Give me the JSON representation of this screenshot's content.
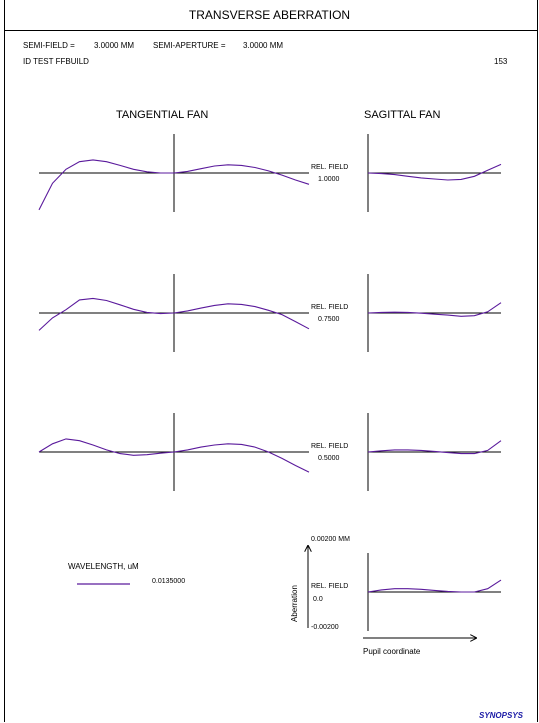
{
  "title": "TRANSVERSE ABERRATION",
  "header": {
    "semi_field_label": "SEMI-FIELD =",
    "semi_field_value": "3.0000 MM",
    "semi_aperture_label": "SEMI-APERTURE =",
    "semi_aperture_value": "3.0000 MM",
    "id_text": "ID TEST FFBUILD",
    "page_number": "153"
  },
  "fan_titles": {
    "tangential": "TANGENTIAL FAN",
    "sagittal": "SAGITTAL FAN"
  },
  "field_label": "REL. FIELD",
  "legend": {
    "title": "WAVELENGTH, uM",
    "entries": [
      {
        "value": "0.0135000",
        "color": "#5a1a9c"
      }
    ]
  },
  "scale": {
    "ylabel": "Aberration",
    "xlabel": "Pupil coordinate",
    "top": "0.00200 MM",
    "bottom": "-0.00200",
    "field_value": "0.0"
  },
  "brand": "SYNOPSYS",
  "chart_data": {
    "type": "line",
    "ylim": [
      -0.002,
      0.002
    ],
    "xlim": [
      -1,
      1
    ],
    "color": "#5a1a9c",
    "fields": [
      {
        "rel_field": "1.0000",
        "tangential": {
          "x": [
            -1.0,
            -0.9,
            -0.8,
            -0.7,
            -0.6,
            -0.5,
            -0.4,
            -0.3,
            -0.2,
            -0.1,
            0.0,
            0.1,
            0.2,
            0.3,
            0.4,
            0.5,
            0.6,
            0.7,
            0.8,
            0.9,
            1.0
          ],
          "y": [
            -0.00189,
            -0.00053,
            0.00019,
            0.00058,
            0.00067,
            0.00058,
            0.00039,
            0.00019,
            6e-05,
            0.0,
            0.0,
            8e-05,
            0.00022,
            0.00036,
            0.00042,
            0.00039,
            0.00028,
            0.00011,
            -0.00011,
            -0.00036,
            -0.00058
          ]
        },
        "sagittal": {
          "x": [
            0.0,
            0.1,
            0.2,
            0.3,
            0.4,
            0.5,
            0.6,
            0.7,
            0.8,
            0.9,
            1.0
          ],
          "y": [
            0.0,
            -3e-05,
            -8e-05,
            -0.00017,
            -0.00025,
            -0.00031,
            -0.00036,
            -0.00033,
            -0.00017,
            0.00014,
            0.00044
          ]
        }
      },
      {
        "rel_field": "0.7500",
        "tangential": {
          "x": [
            -1.0,
            -0.9,
            -0.8,
            -0.7,
            -0.6,
            -0.5,
            -0.4,
            -0.3,
            -0.2,
            -0.1,
            0.0,
            0.1,
            0.2,
            0.3,
            0.4,
            0.5,
            0.6,
            0.7,
            0.8,
            0.9,
            1.0
          ],
          "y": [
            -0.00089,
            -0.00025,
            0.00017,
            0.00067,
            0.00075,
            0.00064,
            0.00042,
            0.00019,
            3e-05,
            -3e-05,
            0.0,
            0.00011,
            0.00025,
            0.00039,
            0.00047,
            0.00044,
            0.00033,
            0.00014,
            -8e-05,
            -0.00044,
            -0.00081
          ]
        },
        "sagittal": {
          "x": [
            0.0,
            0.1,
            0.2,
            0.3,
            0.4,
            0.5,
            0.6,
            0.7,
            0.8,
            0.9,
            1.0
          ],
          "y": [
            0.0,
            3e-05,
            4e-05,
            3e-05,
            -1e-05,
            -6e-05,
            -0.00011,
            -0.00017,
            -0.00014,
            6e-05,
            0.00053
          ]
        }
      },
      {
        "rel_field": "0.5000",
        "tangential": {
          "x": [
            -1.0,
            -0.9,
            -0.8,
            -0.7,
            -0.6,
            -0.5,
            -0.4,
            -0.3,
            -0.2,
            -0.1,
            0.0,
            0.1,
            0.2,
            0.3,
            0.4,
            0.5,
            0.6,
            0.7,
            0.8,
            0.9,
            1.0
          ],
          "y": [
            0.0,
            0.00042,
            0.00067,
            0.00058,
            0.00036,
            0.00011,
            -8e-05,
            -0.00017,
            -0.00014,
            -6e-05,
            0.0,
            0.00011,
            0.00025,
            0.00036,
            0.00042,
            0.00039,
            0.00025,
            0.0,
            -0.00033,
            -0.00069,
            -0.00103
          ]
        },
        "sagittal": {
          "x": [
            0.0,
            0.1,
            0.2,
            0.3,
            0.4,
            0.5,
            0.6,
            0.7,
            0.8,
            0.9,
            1.0
          ],
          "y": [
            0.0,
            6e-05,
            0.00011,
            0.00011,
            8e-05,
            3e-05,
            -3e-05,
            -8e-05,
            -8e-05,
            8e-05,
            0.00058
          ]
        }
      },
      {
        "rel_field": "0.0",
        "tangential": null,
        "sagittal": {
          "x": [
            0.0,
            0.1,
            0.2,
            0.3,
            0.4,
            0.5,
            0.6,
            0.7,
            0.8,
            0.9,
            1.0
          ],
          "y": [
            0.0,
            0.00011,
            0.00017,
            0.00017,
            0.00014,
            8e-05,
            3e-05,
            0.0,
            0.0,
            0.00017,
            0.00061
          ]
        }
      }
    ]
  }
}
